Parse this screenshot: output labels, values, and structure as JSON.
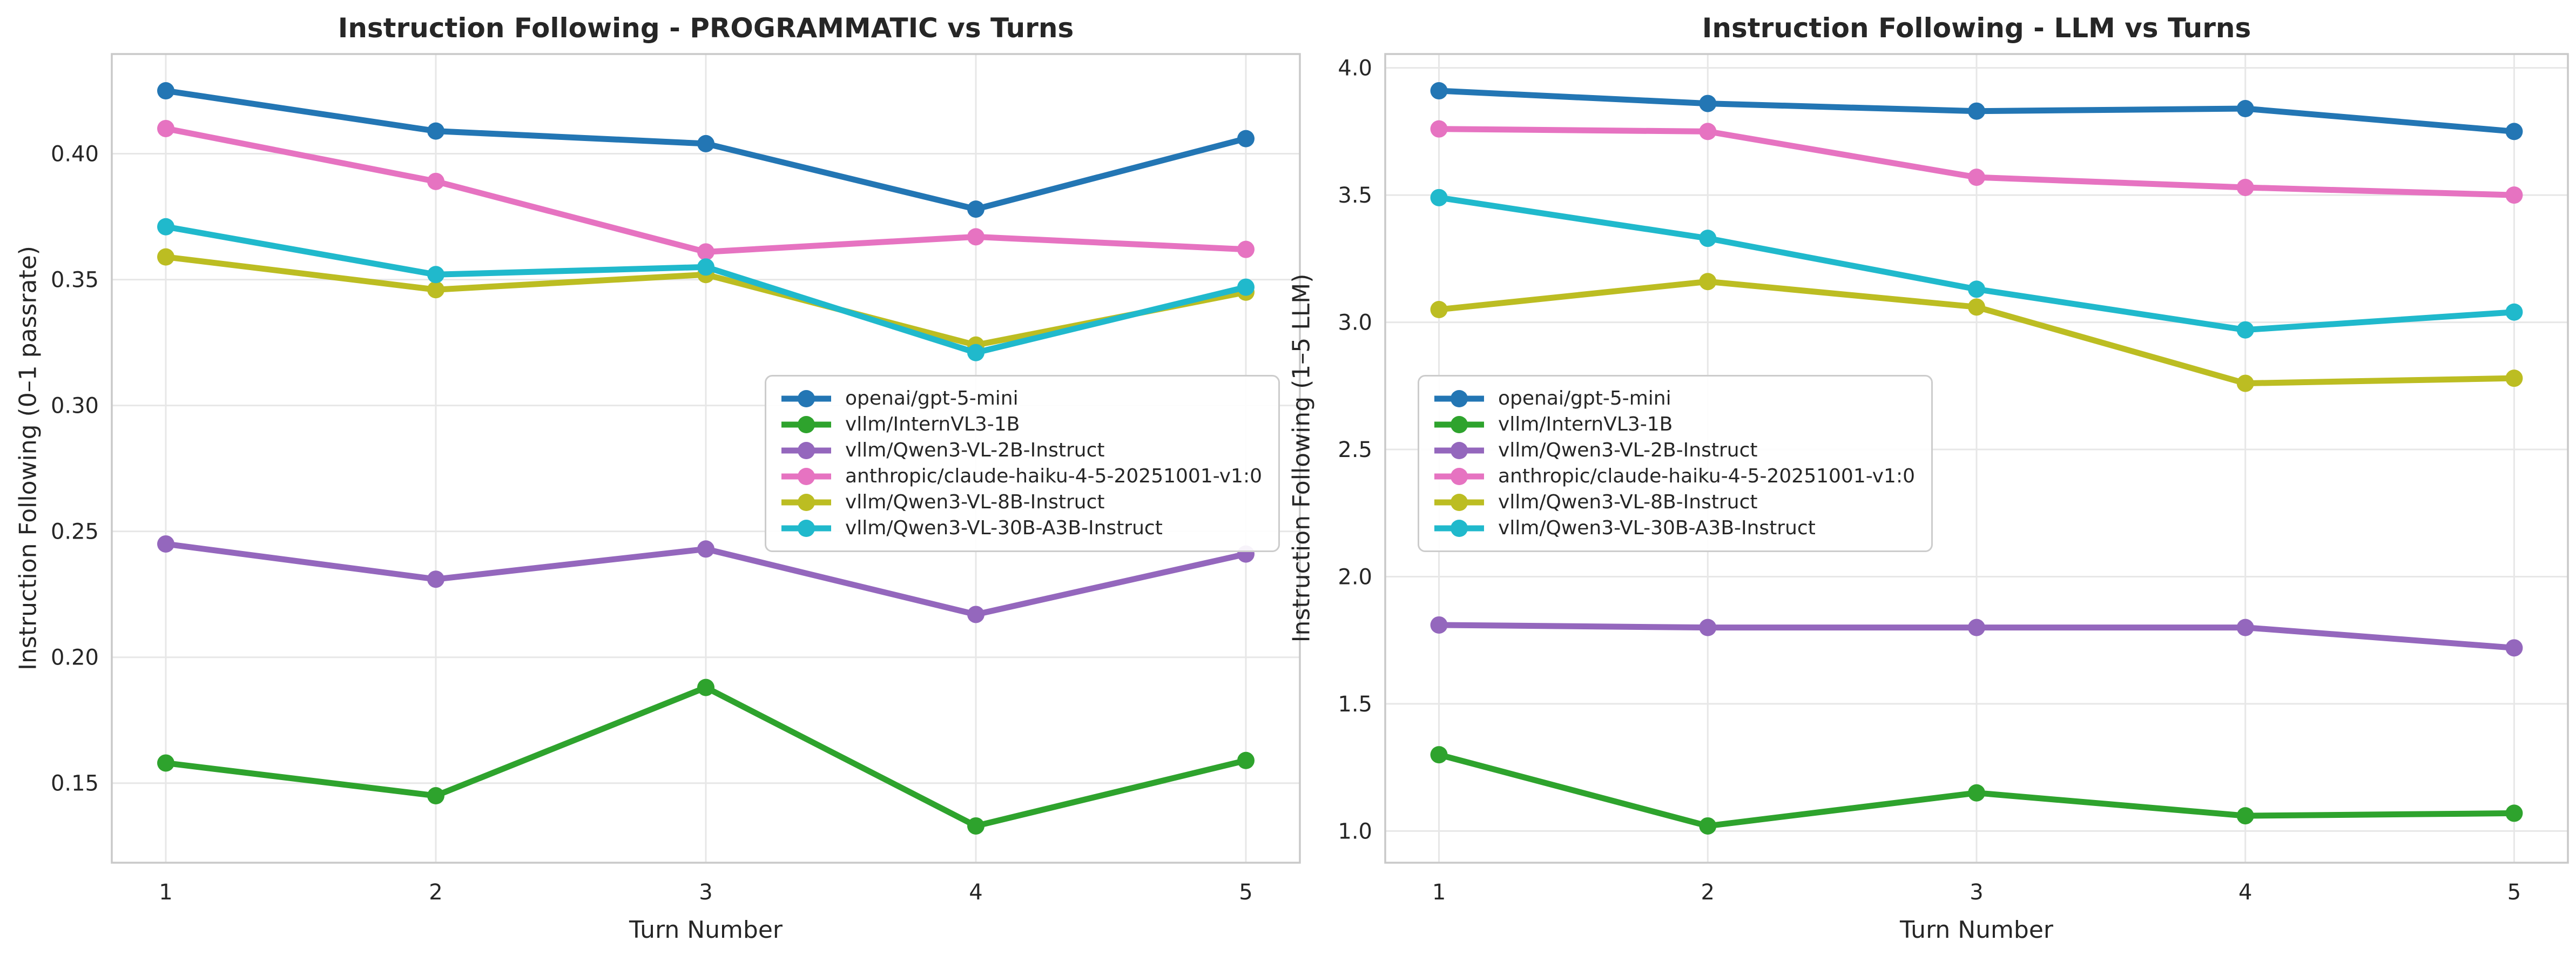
{
  "style": {
    "background": "#ffffff",
    "text_color": "#262626",
    "grid_color": "#e7e7e7",
    "spine_color": "#c9c9c9"
  },
  "chart_data": [
    {
      "type": "line",
      "title": "Instruction Following - PROGRAMMATIC vs Turns",
      "xlabel": "Turn Number",
      "ylabel": "Instruction Following (0–1 passrate)",
      "grid": true,
      "legend_position": "center-right-inside",
      "x": [
        1,
        2,
        3,
        4,
        5
      ],
      "xticklabels": [
        "1",
        "2",
        "3",
        "4",
        "5"
      ],
      "xlim": [
        0.8,
        5.2
      ],
      "yticks": [
        0.15,
        0.2,
        0.25,
        0.3,
        0.35,
        0.4
      ],
      "yticklabels": [
        "0.15",
        "0.20",
        "0.25",
        "0.30",
        "0.35",
        "0.40"
      ],
      "ylim": [
        0.1184,
        0.4396
      ],
      "series": [
        {
          "name": "openai/gpt-5-mini",
          "color": "#2376b4",
          "values": [
            0.425,
            0.409,
            0.404,
            0.378,
            0.406
          ]
        },
        {
          "name": "vllm/InternVL3-1B",
          "color": "#2ea32d",
          "values": [
            0.158,
            0.145,
            0.188,
            0.133,
            0.159
          ]
        },
        {
          "name": "vllm/Qwen3-VL-2B-Instruct",
          "color": "#9467bd",
          "values": [
            0.245,
            0.231,
            0.243,
            0.217,
            0.241
          ]
        },
        {
          "name": "anthropic/claude-haiku-4-5-20251001-v1:0",
          "color": "#e673c1",
          "values": [
            0.41,
            0.389,
            0.361,
            0.367,
            0.362
          ]
        },
        {
          "name": "vllm/Qwen3-VL-8B-Instruct",
          "color": "#bcbd22",
          "values": [
            0.359,
            0.346,
            0.352,
            0.324,
            0.345
          ]
        },
        {
          "name": "vllm/Qwen3-VL-30B-A3B-Instruct",
          "color": "#20b9cc",
          "values": [
            0.371,
            0.352,
            0.355,
            0.321,
            0.347
          ]
        }
      ]
    },
    {
      "type": "line",
      "title": "Instruction Following - LLM vs Turns",
      "xlabel": "Turn Number",
      "ylabel": "Instruction Following (1–5 LLM)",
      "grid": true,
      "legend_position": "center-left-inside",
      "x": [
        1,
        2,
        3,
        4,
        5
      ],
      "xticklabels": [
        "1",
        "2",
        "3",
        "4",
        "5"
      ],
      "xlim": [
        0.8,
        5.2
      ],
      "yticks": [
        1.0,
        1.5,
        2.0,
        2.5,
        3.0,
        3.5,
        4.0
      ],
      "yticklabels": [
        "1.0",
        "1.5",
        "2.0",
        "2.5",
        "3.0",
        "3.5",
        "4.0"
      ],
      "ylim": [
        0.8755,
        4.0545
      ],
      "series": [
        {
          "name": "openai/gpt-5-mini",
          "color": "#2376b4",
          "values": [
            3.91,
            3.86,
            3.83,
            3.84,
            3.75
          ]
        },
        {
          "name": "vllm/InternVL3-1B",
          "color": "#2ea32d",
          "values": [
            1.3,
            1.02,
            1.15,
            1.06,
            1.07
          ]
        },
        {
          "name": "vllm/Qwen3-VL-2B-Instruct",
          "color": "#9467bd",
          "values": [
            1.81,
            1.8,
            1.8,
            1.8,
            1.72
          ]
        },
        {
          "name": "anthropic/claude-haiku-4-5-20251001-v1:0",
          "color": "#e673c1",
          "values": [
            3.76,
            3.75,
            3.57,
            3.53,
            3.5
          ]
        },
        {
          "name": "vllm/Qwen3-VL-8B-Instruct",
          "color": "#bcbd22",
          "values": [
            3.05,
            3.16,
            3.06,
            2.76,
            2.78
          ]
        },
        {
          "name": "vllm/Qwen3-VL-30B-A3B-Instruct",
          "color": "#20b9cc",
          "values": [
            3.49,
            3.33,
            3.13,
            2.97,
            3.04
          ]
        }
      ]
    }
  ]
}
